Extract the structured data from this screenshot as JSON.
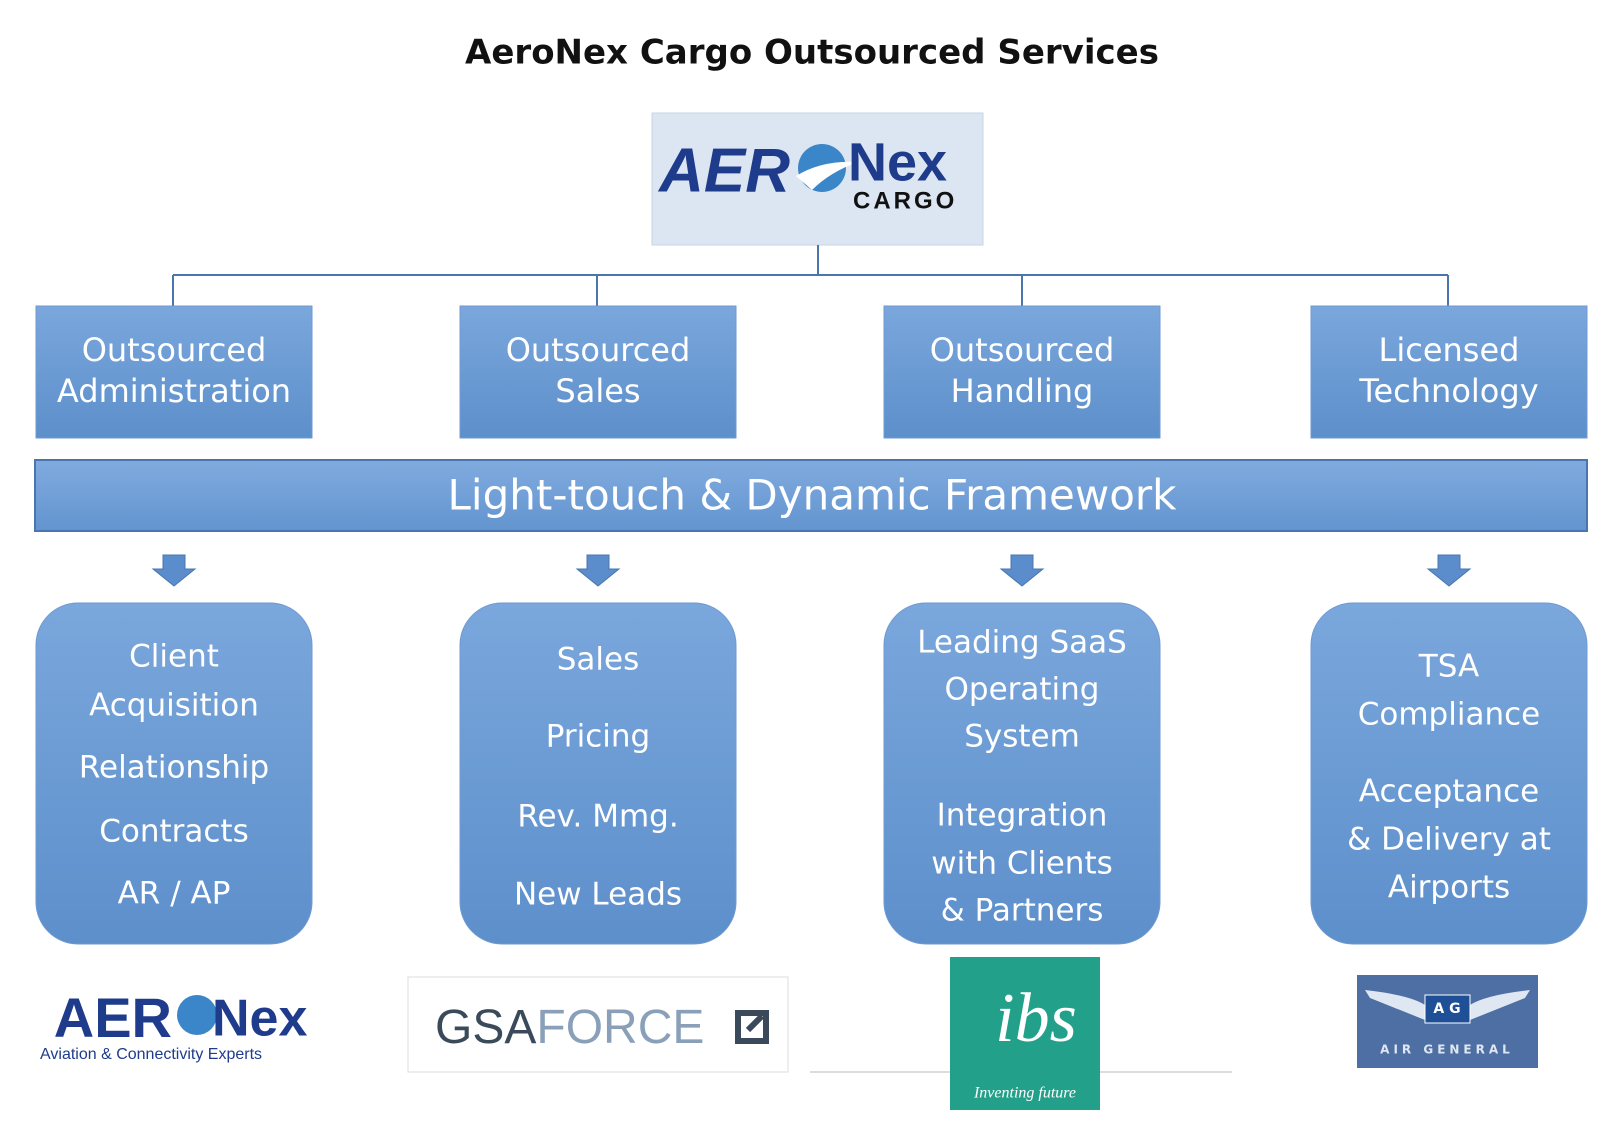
{
  "title": "AeroNex Cargo Outsourced Services",
  "logo": {
    "left": "AER",
    "right": "Nex",
    "sub": "CARGO"
  },
  "services": [
    "Outsourced Administration",
    "Outsourced Sales",
    "Outsourced Handling",
    "Licensed Technology"
  ],
  "framework": "Light-touch & Dynamic Framework",
  "details": [
    [
      "Client",
      "Acquisition",
      "Relationship",
      "Contracts",
      "AR / AP"
    ],
    [
      "Sales",
      "Pricing",
      "Rev. Mmg.",
      "New Leads"
    ],
    [
      "Leading SaaS",
      "Operating",
      "System",
      "Integration",
      "with Clients",
      "& Partners"
    ],
    [
      "TSA",
      "Compliance",
      "Acceptance",
      "& Delivery at",
      "Airports"
    ]
  ],
  "partners": {
    "aeronex": {
      "left": "AER",
      "right": "Nex",
      "tagline": "Aviation & Connectivity Experts"
    },
    "gsaforce": {
      "left": "GSA",
      "right": "FORCE"
    },
    "ibs": {
      "name": "ibs",
      "tagline": "Inventing future"
    },
    "airgeneral": {
      "badge": "A G",
      "name": "AIR GENERAL"
    }
  }
}
